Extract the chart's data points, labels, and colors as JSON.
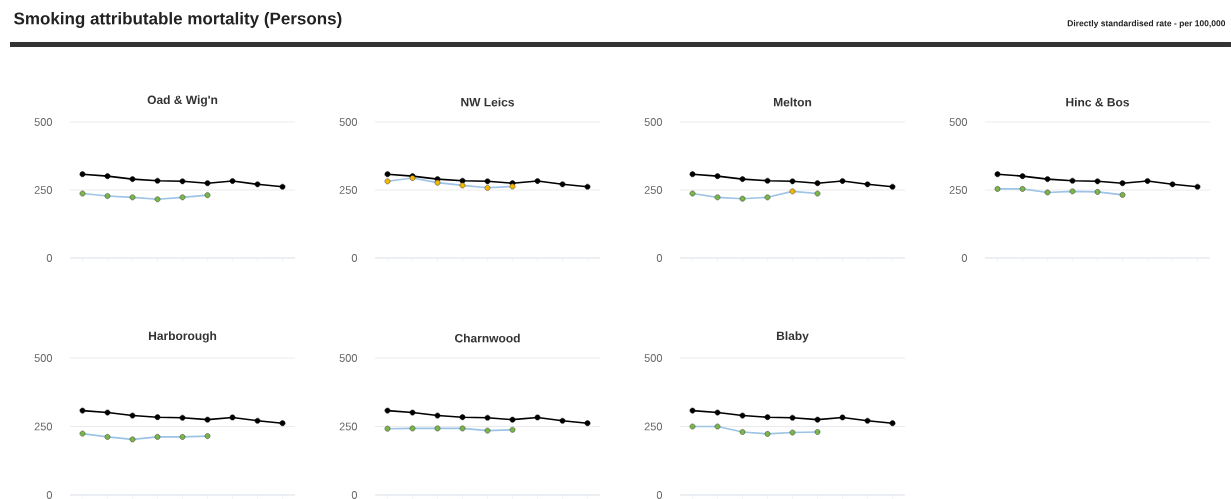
{
  "chart_data": [
    {
      "type": "other",
      "title": "Smoking attributable mortality (Persons)",
      "annotations": [
        "Directly standardised rate - per 100,000"
      ]
    },
    {
      "type": "line",
      "title": "Oad & Wig'n",
      "categories": [
        null,
        null,
        null,
        null,
        null,
        null,
        null,
        null,
        null
      ],
      "ylim": [
        0,
        500
      ],
      "yticks": [
        0,
        250,
        500
      ],
      "grid": "y",
      "marker": "circle",
      "series": [
        {
          "color": "#000000",
          "values": [
            308,
            301,
            290,
            284,
            282,
            275,
            283,
            271,
            262
          ]
        },
        {
          "color": "#9dc3e6",
          "values": [
            237,
            228,
            223,
            216,
            223,
            231,
            null,
            null,
            null
          ],
          "colors": [
            "#7ab648",
            "#7ab648",
            "#7ab648",
            "#7ab648",
            "#7ab648",
            "#7ab648",
            null,
            null,
            null
          ]
        }
      ]
    },
    {
      "type": "line",
      "title": "NW Leics",
      "categories": [
        null,
        null,
        null,
        null,
        null,
        null,
        null,
        null,
        null
      ],
      "ylim": [
        0,
        500
      ],
      "yticks": [
        0,
        250,
        500
      ],
      "grid": "y",
      "marker": "circle",
      "series": [
        {
          "color": "#000000",
          "values": [
            308,
            301,
            290,
            284,
            282,
            275,
            283,
            271,
            262
          ]
        },
        {
          "color": "#9dc3e6",
          "values": [
            282,
            294,
            277,
            267,
            258,
            263,
            null,
            null,
            null
          ],
          "colors": [
            "#f5b800",
            "#f5b800",
            "#f5b800",
            "#f5b800",
            "#f5b800",
            "#f5b800",
            null,
            null,
            null
          ]
        }
      ]
    },
    {
      "type": "line",
      "title": "Melton",
      "categories": [
        null,
        null,
        null,
        null,
        null,
        null,
        null,
        null,
        null
      ],
      "ylim": [
        0,
        500
      ],
      "yticks": [
        0,
        250,
        500
      ],
      "grid": "y",
      "marker": "circle",
      "series": [
        {
          "color": "#000000",
          "values": [
            308,
            301,
            290,
            284,
            282,
            275,
            283,
            271,
            262
          ]
        },
        {
          "color": "#9dc3e6",
          "values": [
            237,
            223,
            218,
            223,
            245,
            237,
            null,
            null,
            null
          ],
          "colors": [
            "#7ab648",
            "#7ab648",
            "#7ab648",
            "#7ab648",
            "#f5b800",
            "#7ab648",
            null,
            null,
            null
          ]
        }
      ]
    },
    {
      "type": "line",
      "title": "Hinc & Bos",
      "categories": [
        null,
        null,
        null,
        null,
        null,
        null,
        null,
        null,
        null
      ],
      "ylim": [
        0,
        500
      ],
      "yticks": [
        0,
        250,
        500
      ],
      "grid": "y",
      "marker": "circle",
      "series": [
        {
          "color": "#000000",
          "values": [
            308,
            301,
            290,
            284,
            282,
            275,
            283,
            271,
            262
          ]
        },
        {
          "color": "#9dc3e6",
          "values": [
            254,
            254,
            241,
            245,
            243,
            232,
            null,
            null,
            null
          ],
          "colors": [
            "#7ab648",
            "#7ab648",
            "#7ab648",
            "#7ab648",
            "#7ab648",
            "#7ab648",
            null,
            null,
            null
          ]
        }
      ]
    },
    {
      "type": "line",
      "title": "Harborough",
      "categories": [
        null,
        null,
        null,
        null,
        null,
        null,
        null,
        null,
        null
      ],
      "ylim": [
        0,
        500
      ],
      "yticks": [
        0,
        250,
        500
      ],
      "grid": "y",
      "marker": "circle",
      "series": [
        {
          "color": "#000000",
          "values": [
            308,
            301,
            290,
            284,
            282,
            275,
            283,
            271,
            262
          ]
        },
        {
          "color": "#9dc3e6",
          "values": [
            224,
            212,
            203,
            212,
            212,
            215,
            null,
            null,
            null
          ],
          "colors": [
            "#7ab648",
            "#7ab648",
            "#7ab648",
            "#7ab648",
            "#7ab648",
            "#7ab648",
            null,
            null,
            null
          ]
        }
      ]
    },
    {
      "type": "line",
      "title": "Charnwood",
      "categories": [
        null,
        null,
        null,
        null,
        null,
        null,
        null,
        null,
        null
      ],
      "ylim": [
        0,
        500
      ],
      "yticks": [
        0,
        250,
        500
      ],
      "grid": "y",
      "marker": "circle",
      "series": [
        {
          "color": "#000000",
          "values": [
            308,
            301,
            290,
            284,
            282,
            275,
            283,
            271,
            262
          ]
        },
        {
          "color": "#9dc3e6",
          "values": [
            242,
            243,
            243,
            243,
            235,
            238,
            null,
            null,
            null
          ],
          "colors": [
            "#7ab648",
            "#7ab648",
            "#7ab648",
            "#7ab648",
            "#7ab648",
            "#7ab648",
            null,
            null,
            null
          ]
        }
      ]
    },
    {
      "type": "line",
      "title": "Blaby",
      "categories": [
        null,
        null,
        null,
        null,
        null,
        null,
        null,
        null,
        null
      ],
      "ylim": [
        0,
        500
      ],
      "yticks": [
        0,
        250,
        500
      ],
      "grid": "y",
      "marker": "circle",
      "series": [
        {
          "color": "#000000",
          "values": [
            308,
            301,
            290,
            284,
            282,
            275,
            283,
            271,
            262
          ]
        },
        {
          "color": "#9dc3e6",
          "values": [
            250,
            250,
            230,
            223,
            228,
            230,
            null,
            null,
            null
          ],
          "colors": [
            "#7ab648",
            "#7ab648",
            "#7ab648",
            "#7ab648",
            "#7ab648",
            "#7ab648",
            null,
            null,
            null
          ]
        }
      ]
    }
  ]
}
